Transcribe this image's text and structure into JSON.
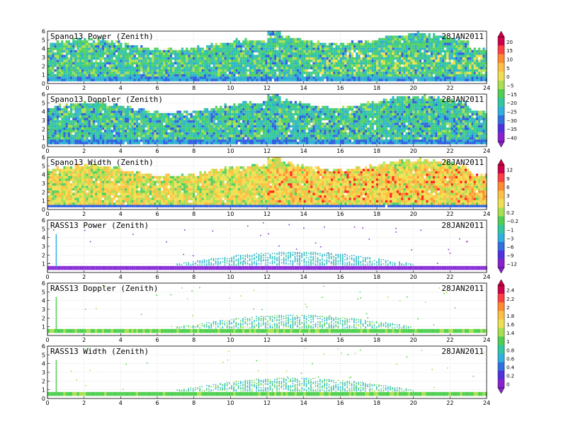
{
  "chart_data": [
    {
      "type": "heatmap",
      "title": "Spano13 Power (Zenith)",
      "date": "28JAN2011",
      "xlim": [
        0,
        24
      ],
      "ylim": [
        0,
        6
      ],
      "field": "spano",
      "colorbar": 0,
      "xticks": [
        0,
        2,
        4,
        6,
        8,
        10,
        12,
        14,
        16,
        18,
        20,
        22,
        24
      ],
      "yticks": [
        0,
        1,
        2,
        3,
        4,
        5,
        6
      ]
    },
    {
      "type": "heatmap",
      "title": "Spano13 Doppler (Zenith)",
      "date": "28JAN2011",
      "xlim": [
        0,
        24
      ],
      "ylim": [
        0,
        6
      ],
      "field": "spano",
      "colorbar": 0,
      "xticks": [
        0,
        2,
        4,
        6,
        8,
        10,
        12,
        14,
        16,
        18,
        20,
        22,
        24
      ],
      "yticks": [
        0,
        1,
        2,
        3,
        4,
        5,
        6
      ]
    },
    {
      "type": "heatmap",
      "title": "Spano13 Width (Zenith)",
      "date": "28JAN2011",
      "xlim": [
        0,
        24
      ],
      "ylim": [
        0,
        6
      ],
      "field": "width",
      "colorbar": 1,
      "xticks": [
        0,
        2,
        4,
        6,
        8,
        10,
        12,
        14,
        16,
        18,
        20,
        22,
        24
      ],
      "yticks": [
        0,
        1,
        2,
        3,
        4,
        5,
        6
      ]
    },
    {
      "type": "heatmap",
      "title": "RASS13 Power (Zenith)",
      "date": "28JAN2011",
      "xlim": [
        0,
        24
      ],
      "ylim": [
        0,
        6
      ],
      "field": "rass-power",
      "colorbar": 1,
      "xticks": [
        0,
        2,
        4,
        6,
        8,
        10,
        12,
        14,
        16,
        18,
        20,
        22,
        24
      ],
      "yticks": [
        1,
        2,
        3,
        4,
        5,
        6
      ]
    },
    {
      "type": "heatmap",
      "title": "RASS13 Doppler (Zenith)",
      "date": "28JAN2011",
      "xlim": [
        0,
        24
      ],
      "ylim": [
        0,
        6
      ],
      "field": "rass",
      "colorbar": 2,
      "xticks": [
        0,
        2,
        4,
        6,
        8,
        10,
        12,
        14,
        16,
        18,
        20,
        22,
        24
      ],
      "yticks": [
        1,
        2,
        3,
        4,
        5,
        6
      ]
    },
    {
      "type": "heatmap",
      "title": "RASS13 Width (Zenith)",
      "date": "28JAN2011",
      "xlim": [
        0,
        24
      ],
      "ylim": [
        0,
        6
      ],
      "field": "rass",
      "colorbar": 2,
      "xticks": [
        0,
        2,
        4,
        6,
        8,
        10,
        12,
        14,
        16,
        18,
        20,
        22,
        24
      ],
      "yticks": [
        0,
        1,
        2,
        3,
        4,
        5,
        6
      ]
    }
  ],
  "colorbars": [
    {
      "labels": [
        "20",
        "15",
        "10",
        "5",
        "0",
        "−5",
        "−15",
        "−20",
        "−25",
        "−30",
        "−35",
        "−40"
      ],
      "colors": [
        "#d0004a",
        "#ff4040",
        "#ff8a30",
        "#ffc040",
        "#f0e050",
        "#a8e050",
        "#50d050",
        "#30c8a0",
        "#30b0e0",
        "#3070e0",
        "#5030e0",
        "#8a20d0"
      ]
    },
    {
      "labels": [
        "12",
        "9",
        "6",
        "3",
        "1",
        "0.2",
        "−0.2",
        "−1",
        "−3",
        "−6",
        "−9",
        "−12"
      ],
      "colors": [
        "#d0004a",
        "#ff4040",
        "#ff8a30",
        "#ffc040",
        "#f0e050",
        "#a8e050",
        "#50d050",
        "#30c8a0",
        "#30b0e0",
        "#3070e0",
        "#5030e0",
        "#8a20d0"
      ]
    },
    {
      "labels": [
        "2.4",
        "2.2",
        "2",
        "1.8",
        "1.6",
        "1.4",
        "1",
        "0.8",
        "0.6",
        "0.4",
        "0.2",
        "0"
      ],
      "colors": [
        "#d0004a",
        "#ff4040",
        "#ff8a30",
        "#ffc040",
        "#f0e050",
        "#a8e050",
        "#50d050",
        "#30c8a0",
        "#30b0e0",
        "#3070e0",
        "#5030e0",
        "#8a20d0"
      ]
    }
  ]
}
